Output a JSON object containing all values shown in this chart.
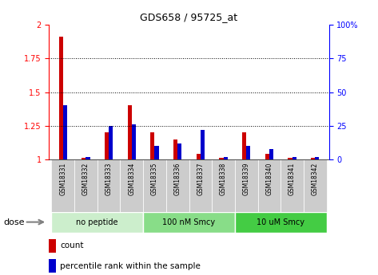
{
  "title": "GDS658 / 95725_at",
  "samples": [
    "GSM18331",
    "GSM18332",
    "GSM18333",
    "GSM18334",
    "GSM18335",
    "GSM18336",
    "GSM18337",
    "GSM18338",
    "GSM18339",
    "GSM18340",
    "GSM18341",
    "GSM18342"
  ],
  "count_values": [
    1.91,
    1.01,
    1.2,
    1.4,
    1.2,
    1.15,
    1.04,
    1.01,
    1.2,
    1.04,
    1.01,
    1.01
  ],
  "percentile_values": [
    40,
    2,
    25,
    26,
    10,
    12,
    22,
    2,
    10,
    8,
    2,
    2
  ],
  "ylim_left": [
    1.0,
    2.0
  ],
  "ylim_right": [
    0,
    100
  ],
  "yticks_left": [
    1.0,
    1.25,
    1.5,
    1.75,
    2.0
  ],
  "yticks_right": [
    0,
    25,
    50,
    75,
    100
  ],
  "ytick_labels_left": [
    "1",
    "1.25",
    "1.5",
    "1.75",
    "2"
  ],
  "ytick_labels_right": [
    "0",
    "25",
    "50",
    "75",
    "100%"
  ],
  "groups": [
    {
      "label": "no peptide",
      "start": 0,
      "end": 4,
      "color": "#cceecc"
    },
    {
      "label": "100 nM Smcy",
      "start": 4,
      "end": 8,
      "color": "#88dd88"
    },
    {
      "label": "10 uM Smcy",
      "start": 8,
      "end": 12,
      "color": "#44cc44"
    }
  ],
  "bar_color_red": "#cc0000",
  "bar_color_blue": "#0000cc",
  "bar_width": 0.18,
  "background_color": "#ffffff",
  "plot_bg_color": "#ffffff",
  "tick_label_bg": "#cccccc",
  "dose_label": "dose",
  "legend_count": "count",
  "legend_percentile": "percentile rank within the sample"
}
